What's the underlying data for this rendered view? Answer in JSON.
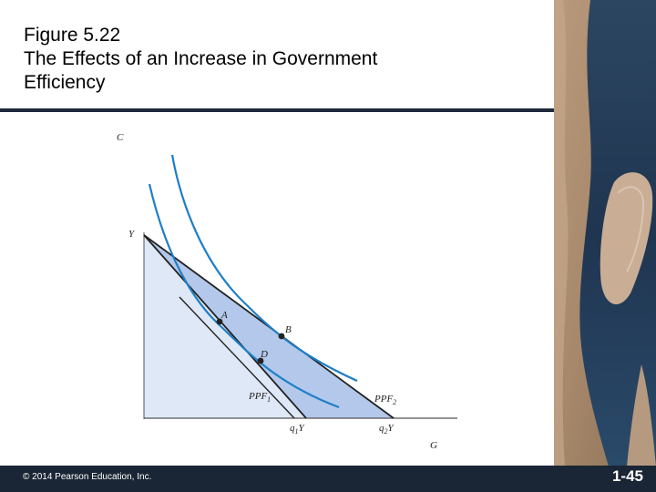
{
  "slide": {
    "title": "Figure 5.22\n The Effects of an Increase in Government\nEfficiency",
    "copyright": "© 2014 Pearson Education, Inc.",
    "page_number": "1-45"
  },
  "diagram": {
    "y_axis_label": "C",
    "x_axis_label": "G",
    "y_intercept_label": "Y",
    "ppf1_label": "PPF",
    "ppf1_subscript": "1",
    "ppf2_label": "PPF",
    "ppf2_subscript": "2",
    "q1y_label_main": "q",
    "q1y_label_sub": "1",
    "q1y_label_tail": "Y",
    "q2y_label_main": "q",
    "q2y_label_sub": "2",
    "q2y_label_tail": "Y",
    "point_a": "A",
    "point_b": "B",
    "point_d": "D",
    "colors": {
      "outer_region": "#dfe8f6",
      "inner_region": "#b3c8ea",
      "indifference_curve": "#1e7fc6",
      "budget_line": "#222222"
    }
  }
}
